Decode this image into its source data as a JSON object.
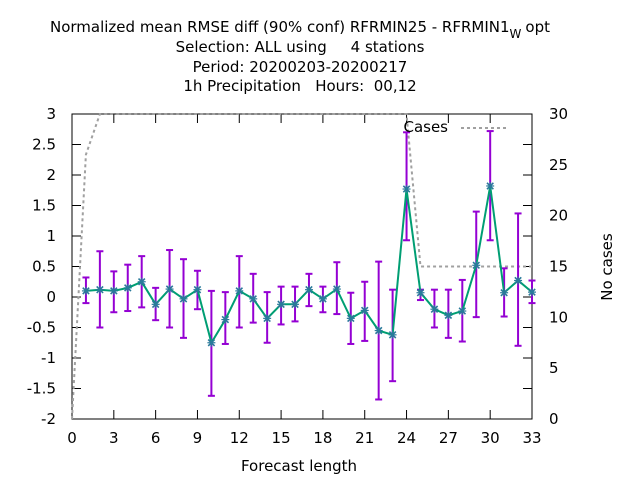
{
  "chart_data": {
    "type": "line",
    "title": {
      "line1_main": "Normalized mean RMSE diff (90% conf) RFRMIN25 - RFRMIN1",
      "line1_sub": "W",
      "line1_tail": "opt",
      "line2": "Selection: ALL using     4 stations",
      "line3": "Period: 20200203-20200217",
      "line4": "1h Precipitation   Hours:  00,12"
    },
    "xlabel": "Forecast length",
    "ylabel_right": "No cases",
    "xlim": [
      0,
      33
    ],
    "ylim": [
      -2,
      3
    ],
    "y2lim": [
      0,
      30
    ],
    "xticks": [
      0,
      3,
      6,
      9,
      12,
      15,
      18,
      21,
      24,
      27,
      30,
      33
    ],
    "yticks": [
      -2,
      -1.5,
      -1,
      -0.5,
      0,
      0.5,
      1,
      1.5,
      2,
      2.5,
      3
    ],
    "y2ticks": [
      0,
      5,
      10,
      15,
      20,
      25,
      30
    ],
    "legend": {
      "label": "Cases",
      "placement": "top-right"
    },
    "colors": {
      "diff_line": "#009e73",
      "error_bar": "#9400d3",
      "cases_line": "#a0a0a0",
      "marker": "#2a7a9a"
    },
    "series": [
      {
        "key": "diff",
        "x": [
          1,
          2,
          3,
          4,
          5,
          6,
          7,
          8,
          9,
          10,
          11,
          12,
          13,
          14,
          15,
          16,
          17,
          18,
          19,
          20,
          21,
          22,
          23,
          24,
          25,
          26,
          27,
          28,
          29,
          30,
          31,
          32,
          33
        ],
        "values": [
          0.1,
          0.12,
          0.1,
          0.15,
          0.25,
          -0.12,
          0.13,
          -0.03,
          0.12,
          -0.75,
          -0.37,
          0.1,
          -0.03,
          -0.35,
          -0.12,
          -0.12,
          0.12,
          -0.03,
          0.13,
          -0.35,
          -0.22,
          -0.55,
          -0.62,
          1.77,
          0.07,
          -0.2,
          -0.3,
          -0.23,
          0.52,
          1.82,
          0.07,
          0.27,
          0.08
        ],
        "err_low": [
          -0.1,
          -0.5,
          -0.25,
          -0.23,
          -0.17,
          -0.38,
          -0.5,
          -0.67,
          -0.2,
          -1.62,
          -0.77,
          -0.5,
          -0.42,
          -0.75,
          -0.45,
          -0.4,
          -0.15,
          -0.25,
          -0.28,
          -0.77,
          -0.72,
          -1.68,
          -1.38,
          0.93,
          -0.05,
          -0.5,
          -0.67,
          -0.73,
          -0.33,
          0.93,
          -0.32,
          -0.8,
          -0.1
        ],
        "err_high": [
          0.32,
          0.75,
          0.42,
          0.53,
          0.67,
          0.15,
          0.77,
          0.62,
          0.43,
          0.1,
          0.08,
          0.67,
          0.38,
          0.08,
          0.17,
          0.17,
          0.38,
          0.17,
          0.57,
          0.07,
          0.25,
          0.58,
          0.12,
          2.7,
          0.12,
          0.12,
          0.12,
          0.28,
          1.4,
          2.72,
          0.47,
          1.37,
          0.27
        ]
      },
      {
        "key": "cases",
        "name": "Cases",
        "axis": "right",
        "x": [
          0,
          1,
          2,
          3,
          4,
          5,
          6,
          7,
          8,
          9,
          10,
          11,
          12,
          13,
          14,
          15,
          16,
          17,
          18,
          19,
          20,
          21,
          22,
          23,
          24,
          25,
          26,
          27,
          28,
          29,
          30,
          31,
          32,
          33
        ],
        "values": [
          0,
          26,
          30,
          30,
          30,
          30,
          30,
          30,
          30,
          30,
          30,
          30,
          30,
          30,
          30,
          30,
          30,
          30,
          30,
          30,
          30,
          30,
          30,
          30,
          30,
          15,
          15,
          15,
          15,
          15,
          15,
          15,
          15,
          15
        ]
      }
    ]
  }
}
